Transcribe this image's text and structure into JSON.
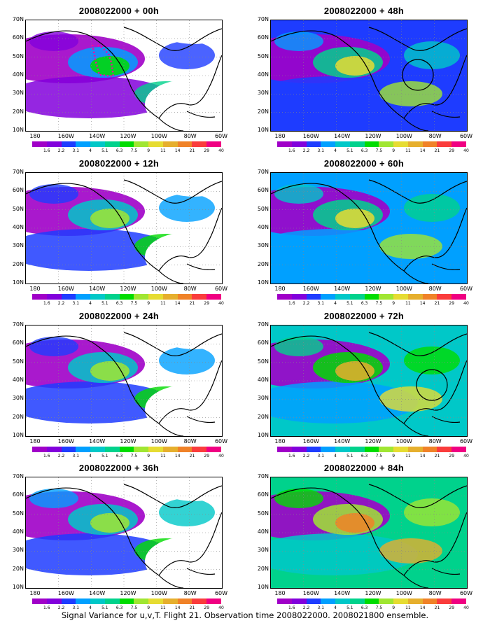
{
  "caption": "Signal Variance for u,v,T. Flight 21. Observation time 2008022000. 2008021800 ensemble.",
  "lat_labels": [
    "70N",
    "60N",
    "50N",
    "40N",
    "30N",
    "20N",
    "10N"
  ],
  "lon_labels": [
    "180",
    "160W",
    "140W",
    "120W",
    "100W",
    "80W",
    "60W"
  ],
  "colorbar": {
    "colors": [
      "#a000c8",
      "#8200dc",
      "#1e3cff",
      "#00a0ff",
      "#00c8c8",
      "#00d28c",
      "#00dc00",
      "#a0e632",
      "#e6dc32",
      "#e6af2d",
      "#f08228",
      "#fa3c3c",
      "#f00082"
    ],
    "labels": [
      "1.6",
      "2.2",
      "3.1",
      "4",
      "5.1",
      "6.3",
      "7.5",
      "9",
      "11",
      "14",
      "21",
      "29",
      "40"
    ]
  },
  "panels": [
    {
      "title": "2008022000 + 00h"
    },
    {
      "title": "2008022000 + 48h"
    },
    {
      "title": "2008022000 + 12h"
    },
    {
      "title": "2008022000 + 60h"
    },
    {
      "title": "2008022000 + 24h"
    },
    {
      "title": "2008022000 + 72h"
    },
    {
      "title": "2008022000 + 36h"
    },
    {
      "title": "2008022000 + 84h"
    }
  ]
}
